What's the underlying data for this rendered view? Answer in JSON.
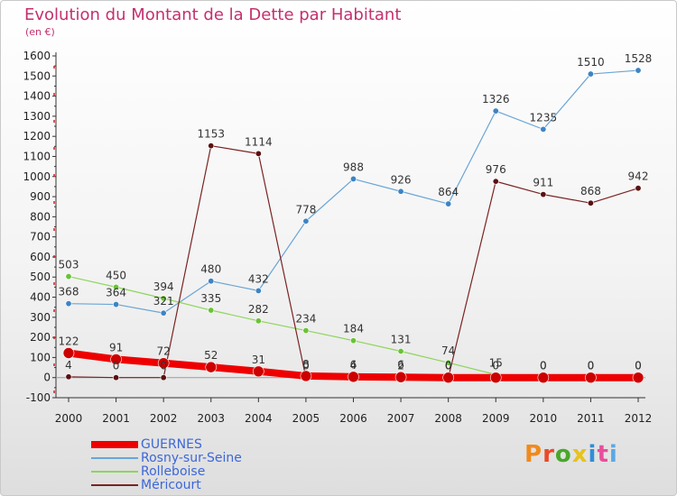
{
  "title": "Evolution du Montant de la Dette par Habitant",
  "subtitle": "(en €)",
  "brand": "Proxiti",
  "brand_colors": [
    "#f08a1c",
    "#ea4a2a",
    "#48a82b",
    "#e9c21a",
    "#2e8ed8",
    "#e94e9c",
    "#5aa9e6"
  ],
  "chart_data": {
    "type": "line",
    "title": "Evolution du Montant de la Dette par Habitant",
    "subtitle": "(en €)",
    "x": [
      2000,
      2001,
      2002,
      2003,
      2004,
      2005,
      2006,
      2007,
      2008,
      2009,
      2010,
      2011,
      2012
    ],
    "ylim": [
      -100,
      1600
    ],
    "yticks": [
      -100,
      0,
      100,
      200,
      300,
      400,
      500,
      600,
      700,
      800,
      900,
      1000,
      1100,
      1200,
      1300,
      1400,
      1500,
      1600
    ],
    "grid": false,
    "legend_position": "bottom-left",
    "series": [
      {
        "name": "GUERNES",
        "color": "#ee0000",
        "values": [
          122,
          91,
          72,
          52,
          31,
          8,
          4,
          2,
          0,
          0,
          0,
          0,
          0
        ]
      },
      {
        "name": "Rosny-sur-Seine",
        "color": "#6aa5d6",
        "values": [
          368,
          364,
          321,
          480,
          432,
          778,
          988,
          926,
          864,
          1326,
          1235,
          1510,
          1528
        ]
      },
      {
        "name": "Rolleboise",
        "color": "#8ed55a",
        "values": [
          503,
          450,
          394,
          335,
          282,
          234,
          184,
          131,
          74,
          15,
          0,
          0,
          0
        ]
      },
      {
        "name": "Méricourt",
        "color": "#7a2323",
        "values": [
          4,
          0,
          0,
          1153,
          1114,
          0,
          6,
          6,
          0,
          976,
          911,
          868,
          942
        ]
      }
    ]
  }
}
